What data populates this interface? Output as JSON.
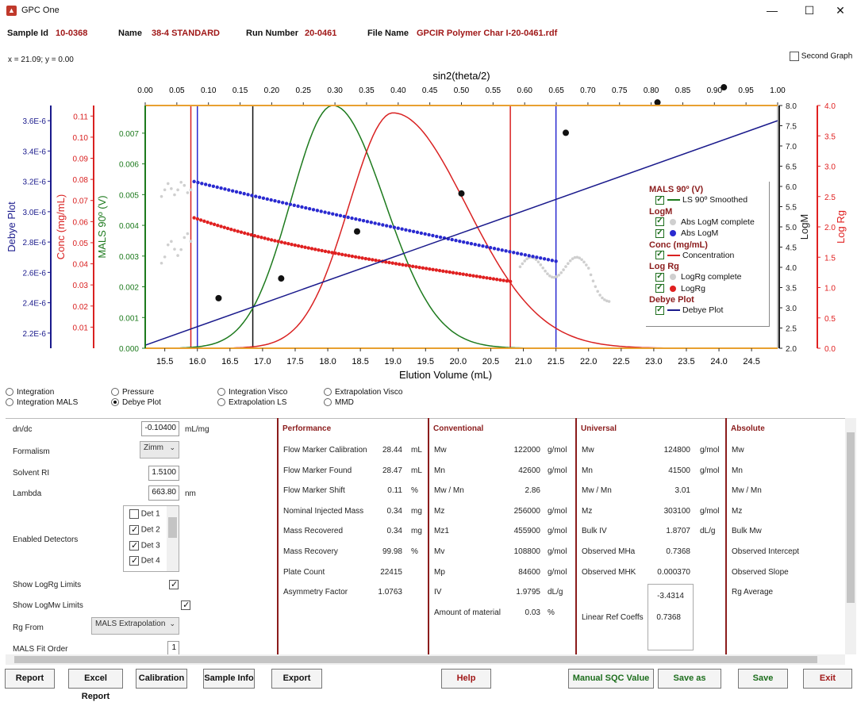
{
  "window": {
    "title": "GPC One",
    "minimize": "—",
    "maximize": "☐",
    "close": "✕"
  },
  "header": {
    "sample_id_label": "Sample Id",
    "sample_id": "10-0368",
    "name_label": "Name",
    "name": "38-4 STANDARD",
    "run_number_label": "Run Number",
    "run_number": "20-0461",
    "file_name_label": "File Name",
    "file_name": "GPCIR Polymer Char I-20-0461.rdf"
  },
  "coord_readout": "x = 21.09; y = 0.00",
  "second_graph_label": "Second Graph",
  "colors": {
    "debye": "#1a1a8c",
    "conc": "#d92121",
    "mals": "#1d7a1d",
    "logm": "#2a2ad0",
    "logrg": "#e02020",
    "accent": "#8b1c1c"
  },
  "chart_data": {
    "type": "line",
    "xlabel": "Elution Volume (mL)",
    "x_ticks": [
      "15.5",
      "16.0",
      "16.5",
      "17.0",
      "17.5",
      "18.0",
      "18.5",
      "19.0",
      "19.5",
      "20.0",
      "20.5",
      "21.0",
      "21.5",
      "22.0",
      "22.5",
      "23.0",
      "23.5",
      "24.0",
      "24.5"
    ],
    "xlim": [
      15.2,
      24.9
    ],
    "top_xlabel": "sin2(theta/2)",
    "top_ticks": [
      "0.00",
      "0.05",
      "0.10",
      "0.15",
      "0.20",
      "0.25",
      "0.30",
      "0.35",
      "0.40",
      "0.45",
      "0.50",
      "0.55",
      "0.60",
      "0.65",
      "0.70",
      "0.75",
      "0.80",
      "0.85",
      "0.90",
      "0.95",
      "1.00"
    ],
    "top_xlim": [
      0,
      1
    ],
    "axes": {
      "debye": {
        "label": "Debye Plot",
        "ticks": [
          "2.2E-6",
          "2.4E-6",
          "2.6E-6",
          "2.8E-6",
          "3.0E-6",
          "3.2E-6",
          "3.4E-6",
          "3.6E-6"
        ],
        "ylim": [
          2.1e-06,
          3.7e-06
        ]
      },
      "conc": {
        "label": "Conc (mg/mL)",
        "ticks": [
          "0.01",
          "0.02",
          "0.03",
          "0.04",
          "0.05",
          "0.06",
          "0.07",
          "0.08",
          "0.09",
          "0.10",
          "0.11"
        ],
        "ylim": [
          0,
          0.115
        ]
      },
      "mals": {
        "label": "MALS 90º (V)",
        "ticks": [
          "0.000",
          "0.001",
          "0.002",
          "0.003",
          "0.004",
          "0.005",
          "0.006",
          "0.007"
        ],
        "ylim": [
          0,
          0.0079
        ]
      },
      "logm": {
        "label": "LogM",
        "ticks": [
          "2.0",
          "2.5",
          "3.0",
          "3.5",
          "4.0",
          "4.5",
          "5.0",
          "5.5",
          "6.0",
          "6.5",
          "7.0",
          "7.5",
          "8.0"
        ],
        "ylim": [
          2.0,
          8.0
        ]
      },
      "logrg": {
        "label": "Log Rg",
        "ticks": [
          "0.0",
          "0.5",
          "1.0",
          "1.5",
          "2.0",
          "2.5",
          "3.0",
          "3.5",
          "4.0"
        ],
        "ylim": [
          0.0,
          4.0
        ]
      }
    },
    "mals_peak": {
      "center": 18.08,
      "sigma": 0.72,
      "height": 0.0079
    },
    "conc_peak": {
      "center": 19.0,
      "sigma": 0.9,
      "height": 0.1115
    },
    "logm_line": {
      "x": [
        15.95,
        21.5
      ],
      "y": [
        6.0,
        4.15
      ]
    },
    "logrg_line": {
      "x": [
        15.95,
        20.8
      ],
      "y": [
        1.9,
        1.1
      ]
    },
    "debye_line": {
      "x": [
        0,
        1
      ],
      "y": [
        2.12e-06,
        3.6e-06
      ]
    },
    "debye_points": {
      "x": [
        0.116,
        0.215,
        0.335,
        0.5,
        0.665,
        0.81,
        0.915
      ],
      "y": [
        2.43e-06,
        2.56e-06,
        2.87e-06,
        3.12e-06,
        3.52e-06,
        3.72e-06,
        3.82e-06
      ]
    },
    "limit_lines": {
      "red": [
        15.9,
        20.8
      ],
      "blue": [
        16.0,
        21.5
      ],
      "black": [
        16.85
      ]
    },
    "legend": {
      "groups": [
        {
          "title": "MALS 90º (V)",
          "items": [
            {
              "label": "LS 90º Smoothed",
              "marker": "line",
              "color": "#1d7a1d"
            }
          ]
        },
        {
          "title": "LogM",
          "items": [
            {
              "label": "Abs LogM complete",
              "marker": "dot",
              "color": "#cfcfcf"
            },
            {
              "label": "Abs LogM",
              "marker": "dot",
              "color": "#2a2ad0"
            }
          ]
        },
        {
          "title": "Conc (mg/mL)",
          "items": [
            {
              "label": "Concentration",
              "marker": "line",
              "color": "#d92121"
            }
          ]
        },
        {
          "title": "Log Rg",
          "items": [
            {
              "label": "LogRg complete",
              "marker": "dot",
              "color": "#cfcfcf"
            },
            {
              "label": "LogRg",
              "marker": "dot",
              "color": "#e02020"
            }
          ]
        },
        {
          "title": "Debye Plot",
          "items": [
            {
              "label": "Debye Plot",
              "marker": "line",
              "color": "#1a1a8c"
            }
          ]
        }
      ]
    }
  },
  "radios": [
    {
      "label": "Integration",
      "selected": false
    },
    {
      "label": "Integration MALS",
      "selected": false
    },
    {
      "label": "Pressure",
      "selected": false
    },
    {
      "label": "Debye Plot",
      "selected": true
    },
    {
      "label": "Integration Visco",
      "selected": false
    },
    {
      "label": "Extrapolation LS",
      "selected": false
    },
    {
      "label": "Extrapolation Visco",
      "selected": false
    },
    {
      "label": "MMD",
      "selected": false
    }
  ],
  "settings": {
    "dndc_label": "dn/dc",
    "dndc_value": "-0.10400",
    "dndc_unit": "mL/mg",
    "formalism_label": "Formalism",
    "formalism_value": "Zimm",
    "solvent_ri_label": "Solvent RI",
    "solvent_ri_value": "1.5100",
    "lambda_label": "Lambda",
    "lambda_value": "663.80",
    "lambda_unit": "nm",
    "enabled_detectors_label": "Enabled Detectors",
    "detectors": [
      {
        "label": "Det 1",
        "checked": false
      },
      {
        "label": "Det 2",
        "checked": true
      },
      {
        "label": "Det 3",
        "checked": true
      },
      {
        "label": "Det 4",
        "checked": true
      }
    ],
    "show_logrg_label": "Show LogRg Limits",
    "show_logmw_label": "Show LogMw Limits",
    "rg_from_label": "Rg From",
    "rg_from_value": "MALS Extrapolation",
    "mals_fit_label": "MALS Fit Order",
    "mals_fit_value": "1"
  },
  "performance": {
    "title": "Performance",
    "rows": [
      {
        "label": "Flow Marker Calibration",
        "value": "28.44",
        "unit": "mL"
      },
      {
        "label": "Flow Marker Found",
        "value": "28.47",
        "unit": "mL"
      },
      {
        "label": "Flow Marker Shift",
        "value": "0.11",
        "unit": "%"
      },
      {
        "label": "Nominal Injected Mass",
        "value": "0.34",
        "unit": "mg"
      },
      {
        "label": "Mass Recovered",
        "value": "0.34",
        "unit": "mg"
      },
      {
        "label": "Mass Recovery",
        "value": "99.98",
        "unit": "%"
      },
      {
        "label": "Plate Count",
        "value": "22415",
        "unit": ""
      },
      {
        "label": "Asymmetry Factor",
        "value": "1.0763",
        "unit": ""
      }
    ]
  },
  "conventional": {
    "title": "Conventional",
    "rows": [
      {
        "label": "Mw",
        "value": "122000",
        "unit": "g/mol"
      },
      {
        "label": "Mn",
        "value": "42600",
        "unit": "g/mol"
      },
      {
        "label": "Mw / Mn",
        "value": "2.86",
        "unit": ""
      },
      {
        "label": "Mz",
        "value": "256000",
        "unit": "g/mol"
      },
      {
        "label": "Mz1",
        "value": "455900",
        "unit": "g/mol"
      },
      {
        "label": "Mv",
        "value": "108800",
        "unit": "g/mol"
      },
      {
        "label": "Mp",
        "value": "84600",
        "unit": "g/mol"
      },
      {
        "label": "IV",
        "value": "1.9795",
        "unit": "dL/g"
      },
      {
        "label": "Amount of material",
        "value": "0.03",
        "unit": "%"
      }
    ]
  },
  "universal": {
    "title": "Universal",
    "rows": [
      {
        "label": "Mw",
        "value": "124800",
        "unit": "g/mol"
      },
      {
        "label": "Mn",
        "value": "41500",
        "unit": "g/mol"
      },
      {
        "label": "Mw / Mn",
        "value": "3.01",
        "unit": ""
      },
      {
        "label": "Mz",
        "value": "303100",
        "unit": "g/mol"
      },
      {
        "label": "Bulk IV",
        "value": "1.8707",
        "unit": "dL/g"
      },
      {
        "label": "Observed MHa",
        "value": "0.7368",
        "unit": ""
      },
      {
        "label": "Observed MHK",
        "value": "0.000370",
        "unit": ""
      }
    ],
    "linear_ref_label": "Linear Ref Coeffs",
    "linear_ref_values": [
      "-3.4314",
      "0.7368"
    ]
  },
  "absolute": {
    "title": "Absolute",
    "rows": [
      "Mw",
      "Mn",
      "Mw / Mn",
      "Mz",
      "Bulk Mw",
      "Observed Intercept",
      "Observed Slope",
      "Rg Average"
    ]
  },
  "buttons": {
    "report": "Report",
    "excel_report": "Excel Report",
    "calibration": "Calibration",
    "sample_info": "Sample Info",
    "export": "Export",
    "help": "Help",
    "manual_sqc": "Manual SQC Value",
    "save_as": "Save as",
    "save": "Save",
    "exit": "Exit"
  }
}
